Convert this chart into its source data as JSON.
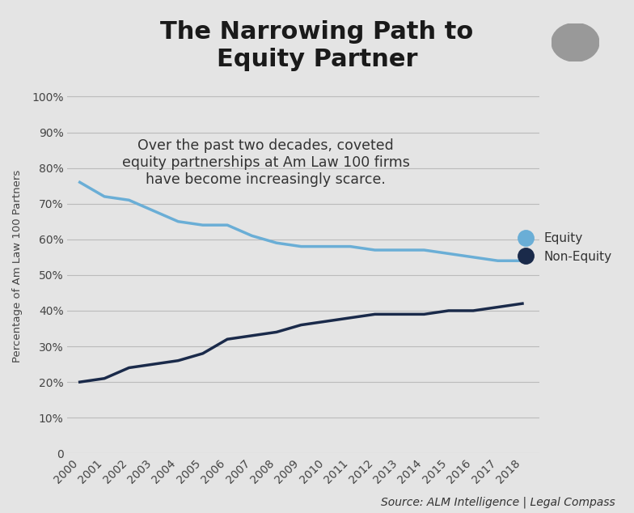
{
  "title": "The Narrowing Path to\nEquity Partner",
  "subtitle": "Over the past two decades, coveted\nequity partnerships at Am Law 100 firms\nhave become increasingly scarce.",
  "source": "Source: ALM Intelligence | Legal Compass",
  "ylabel": "Percentage of Am Law 100 Partners",
  "years": [
    2000,
    2001,
    2002,
    2003,
    2004,
    2005,
    2006,
    2007,
    2008,
    2009,
    2010,
    2011,
    2012,
    2013,
    2014,
    2015,
    2016,
    2017,
    2018
  ],
  "equity": [
    76,
    72,
    71,
    68,
    65,
    64,
    64,
    61,
    59,
    58,
    58,
    58,
    57,
    57,
    57,
    56,
    55,
    54,
    54
  ],
  "non_equity": [
    20,
    21,
    24,
    25,
    26,
    28,
    32,
    33,
    34,
    36,
    37,
    38,
    39,
    39,
    39,
    40,
    40,
    41,
    42
  ],
  "equity_color": "#6aaed6",
  "non_equity_color": "#1a2a4a",
  "background_color": "#e4e4e4",
  "grid_color": "#bbbbbb",
  "title_fontsize": 22,
  "subtitle_fontsize": 12.5,
  "ylabel_fontsize": 9.5,
  "source_fontsize": 10,
  "tick_fontsize": 10,
  "ylim": [
    0,
    105
  ],
  "yticks": [
    0,
    10,
    20,
    30,
    40,
    50,
    60,
    70,
    80,
    90,
    100
  ],
  "ytick_labels": [
    "0",
    "10%",
    "20%",
    "30%",
    "40%",
    "50%",
    "60%",
    "70%",
    "80%",
    "90%",
    "100%"
  ]
}
